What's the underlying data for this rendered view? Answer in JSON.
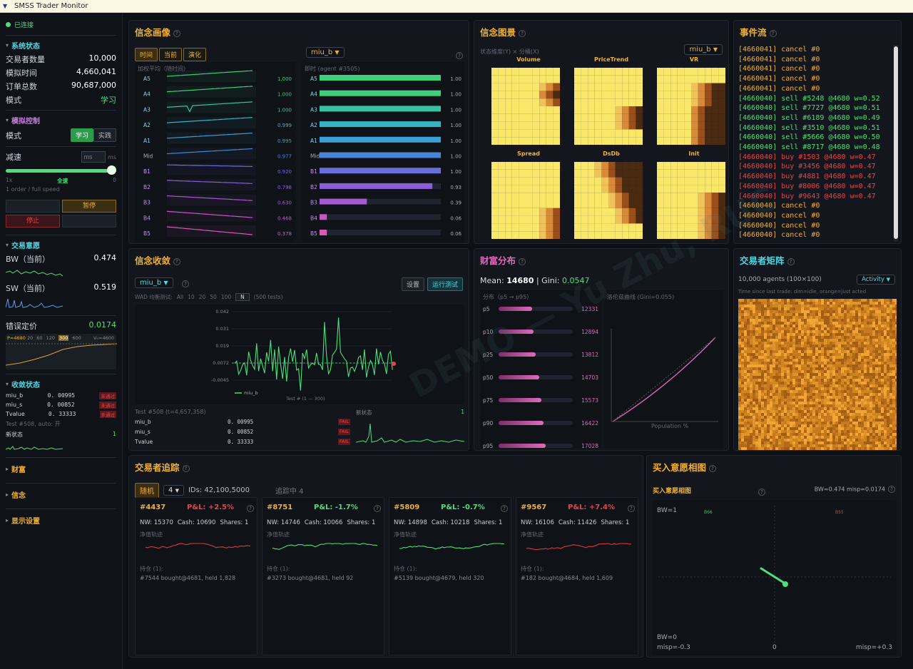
{
  "window": {
    "title": "SMSS Trader Monitor"
  },
  "sidebar": {
    "connection": "已连接",
    "system": {
      "title": "系统状态",
      "rows": [
        {
          "k": "交易者数量",
          "v": "10,000"
        },
        {
          "k": "模拟时间",
          "v": "4,660,041"
        },
        {
          "k": "订单总数",
          "v": "90,687,000"
        },
        {
          "k": "模式",
          "v": "学习"
        }
      ]
    },
    "control": {
      "title": "模拟控制",
      "mode_label": "模式",
      "mode_learn": "学习",
      "mode_live": "实践",
      "speed_label": "减速",
      "speed_unit_placeholder": "ms",
      "speed_unit": "ms",
      "slider_left": "1x",
      "slider_mid": "全速",
      "slider_right": "0",
      "speed_note": "1 order / full speed",
      "pause": "暂停",
      "stop": "停止"
    },
    "willing": {
      "title": "交易意愿",
      "bw_label": "BW（当前）",
      "bw": "0.474",
      "sw_label": "SW（当前）",
      "sw": "0.519",
      "mis_label": "错误定价",
      "mis": "0.0174",
      "mis_p": "P=4680",
      "mis_ticks": [
        "20",
        "60",
        "120",
        "300",
        "600"
      ],
      "mis_v": "V₀=4600"
    },
    "conv": {
      "title": "收敛状态",
      "rows": [
        {
          "k": "miu_b",
          "v": "0. 00995",
          "s": "未通过"
        },
        {
          "k": "miu_s",
          "v": "0. 00852",
          "s": "未通过"
        },
        {
          "k": "Tvalue",
          "v": "0. 33333",
          "s": "未通过"
        }
      ],
      "test_note": "Test #508, auto: 开",
      "new_state": "新状态",
      "new_state_v": "1"
    },
    "collapsed": [
      "财富",
      "信念",
      "显示设置"
    ]
  },
  "belief_portrait": {
    "title": "信念画像",
    "tabs": [
      "时间",
      "当前",
      "演化"
    ],
    "select": "miu_b",
    "left_label": "加权平均（随时间）",
    "right_label": "即时 (agent #3505)",
    "rows": [
      {
        "name": "A5",
        "left": "1.000",
        "right": "1.00",
        "bar": 1.0,
        "color": "#3dcf7a"
      },
      {
        "name": "A4",
        "left": "1.000",
        "right": "1.00",
        "bar": 1.0,
        "color": "#3dcf7a"
      },
      {
        "name": "A3",
        "left": "1.000",
        "right": "1.00",
        "bar": 1.0,
        "color": "#38c4a0"
      },
      {
        "name": "A2",
        "left": "0.999",
        "right": "1.00",
        "bar": 1.0,
        "color": "#38b3c4"
      },
      {
        "name": "A1",
        "left": "0.995",
        "right": "1.00",
        "bar": 1.0,
        "color": "#3c9ed4"
      },
      {
        "name": "Mid",
        "left": "0.977",
        "right": "1.00",
        "bar": 1.0,
        "color": "#4a85d8"
      },
      {
        "name": "B1",
        "left": "0.920",
        "right": "1.00",
        "bar": 1.0,
        "color": "#6b6ed8"
      },
      {
        "name": "B2",
        "left": "0.798",
        "right": "0.93",
        "bar": 0.93,
        "color": "#8a5ed6"
      },
      {
        "name": "B3",
        "left": "0.630",
        "right": "0.39",
        "bar": 0.39,
        "color": "#a55bd0"
      },
      {
        "name": "B4",
        "left": "0.468",
        "right": "0.06",
        "bar": 0.06,
        "color": "#c35ac4"
      },
      {
        "name": "B5",
        "left": "0.378",
        "right": "0.06",
        "bar": 0.06,
        "color": "#d85ab4"
      }
    ]
  },
  "belief_landscape": {
    "title": "信念图景",
    "subtitle": "状态维度(Y) × 分桶(X)",
    "select": "miu_b",
    "maps": [
      "Volume",
      "PriceTrend",
      "VR",
      "Spread",
      "DsDb",
      "Init"
    ]
  },
  "events": {
    "title": "事件流",
    "items": [
      {
        "t": "[4660041] cancel #0",
        "c": "#f0b033"
      },
      {
        "t": "[4660041] cancel #0",
        "c": "#f0b033"
      },
      {
        "t": "[4660041] cancel #0",
        "c": "#f0b033"
      },
      {
        "t": "[4660041] cancel #0",
        "c": "#f0b033"
      },
      {
        "t": "[4660041] cancel #0",
        "c": "#f0b033"
      },
      {
        "t": "[4660040] sell #5248 @4680 w=0.52",
        "c": "#4be07a"
      },
      {
        "t": "[4660040] sell #7727 @4680 w=0.51",
        "c": "#4be07a"
      },
      {
        "t": "[4660040] sell #6189 @4680 w=0.49",
        "c": "#4be07a"
      },
      {
        "t": "[4660040] sell #3510 @4680 w=0.51",
        "c": "#4be07a"
      },
      {
        "t": "[4660040] sell #5666 @4680 w=0.50",
        "c": "#4be07a"
      },
      {
        "t": "[4660040] sell #8717 @4680 w=0.48",
        "c": "#4be07a"
      },
      {
        "t": "[4660040] buy #1503 @4680 w=0.47",
        "c": "#e8424a"
      },
      {
        "t": "[4660040] buy #3456 @4680 w=0.47",
        "c": "#e8424a"
      },
      {
        "t": "[4660040] buy #4881 @4680 w=0.47",
        "c": "#e8424a"
      },
      {
        "t": "[4660040] buy #8006 @4680 w=0.47",
        "c": "#e8424a"
      },
      {
        "t": "[4660040] buy #9643 @4680 w=0.47",
        "c": "#e8424a"
      },
      {
        "t": "[4660040] cancel #0",
        "c": "#f0b033"
      },
      {
        "t": "[4660040] cancel #0",
        "c": "#f0b033"
      },
      {
        "t": "[4660040] cancel #0",
        "c": "#f0b033"
      },
      {
        "t": "[4660040] cancel #0",
        "c": "#f0b033"
      }
    ]
  },
  "convergence": {
    "title": "信念收敛",
    "select": "miu_b",
    "settings": "设置",
    "run_test": "运行测试",
    "wad_label": "WAD 均衡测试:",
    "wad_opts": [
      "All",
      "10",
      "20",
      "50",
      "100"
    ],
    "wad_input": "N",
    "wad_tests": "(500 tests)",
    "chart_data": {
      "type": "line",
      "series": [
        {
          "name": "miu_b"
        }
      ],
      "xlabel": "Test # (1 — 300)",
      "yticks": [
        "0.042",
        "0.031",
        "0.019",
        "0.0072",
        "-0.0045"
      ],
      "ylim": [
        -0.0045,
        0.042
      ]
    },
    "test_title": "Test #508 (t=4,657,358)",
    "rows": [
      {
        "k": "miu_b",
        "v": "0. 00995",
        "s": "FAIL"
      },
      {
        "k": "miu_s",
        "v": "0. 00852",
        "s": "FAIL"
      },
      {
        "k": "Tvalue",
        "v": "0. 33333",
        "s": "FAIL"
      }
    ],
    "new_state": "新状态",
    "new_state_v": "1"
  },
  "wealth": {
    "title": "财富分布",
    "mean_label": "Mean: ",
    "mean": "14680",
    "gini_label": " | Gini: ",
    "gini": "0.0547",
    "dist_label": "分布（p5 → p95）",
    "lorenz_label": "洛伦兹曲线 (Gini=0.055)",
    "x_axis": "Population %",
    "pct": [
      {
        "k": "p5",
        "v": "12331",
        "f": 0.45
      },
      {
        "k": "p10",
        "v": "12894",
        "f": 0.47
      },
      {
        "k": "p25",
        "v": "13812",
        "f": 0.5
      },
      {
        "k": "p50",
        "v": "14703",
        "f": 0.55
      },
      {
        "k": "p75",
        "v": "15573",
        "f": 0.58
      },
      {
        "k": "p90",
        "v": "16422",
        "f": 0.61
      },
      {
        "k": "p95",
        "v": "17028",
        "f": 0.63
      }
    ]
  },
  "matrix": {
    "title": "交易者矩阵",
    "agents": "10,000 agents (100×100)",
    "select": "Activity",
    "note": "Time since last trade: dim=idle, orange=just acted"
  },
  "tracker": {
    "title": "交易者追踪",
    "random": "随机",
    "count": "4",
    "ids": "IDs: 42,100,5000",
    "tracking": "追踪中 4",
    "traders": [
      {
        "id": "#4437",
        "pnl": "P&L: +2.5%",
        "pos": false,
        "nw": "NW: 15370",
        "cash": "Cash: 10690",
        "shares": "Shares: 1",
        "trail": "净值轨迹",
        "hold": "持仓 (1):",
        "detail": "#7544 bought@4681, held 1,828",
        "color": "#d8383f"
      },
      {
        "id": "#8751",
        "pnl": "P&L: -1.7%",
        "pos": true,
        "nw": "NW: 14746",
        "cash": "Cash: 10066",
        "shares": "Shares: 1",
        "trail": "净值轨迹",
        "hold": "持仓 (1):",
        "detail": "#3273 bought@4681, held 92",
        "color": "#4be07a"
      },
      {
        "id": "#5809",
        "pnl": "P&L: -0.7%",
        "pos": true,
        "nw": "NW: 14898",
        "cash": "Cash: 10218",
        "shares": "Shares: 1",
        "trail": "净值轨迹",
        "hold": "持仓 (1):",
        "detail": "#5139 bought@4679, held 320",
        "color": "#4be07a"
      },
      {
        "id": "#9567",
        "pnl": "P&L: +7.4%",
        "pos": false,
        "nw": "NW: 16106",
        "cash": "Cash: 11426",
        "shares": "Shares: 1",
        "trail": "净值轨迹",
        "hold": "持仓 (1):",
        "detail": "#182 bought@4684, held 1,609",
        "color": "#d8383f"
      }
    ]
  },
  "phase": {
    "title": "买入意愿相图",
    "subtitle": "买入意愿相图",
    "stats": "BW=0.474 misp=0.0174",
    "bw1": "BW=1",
    "bw0": "BW=0",
    "misp_l": "misp=-0.3",
    "misp_0": "0",
    "misp_r": "misp=+0.3",
    "q1": "B66",
    "q2": "B55"
  },
  "watermark": "DEMO — Yu Zhu, RUC"
}
